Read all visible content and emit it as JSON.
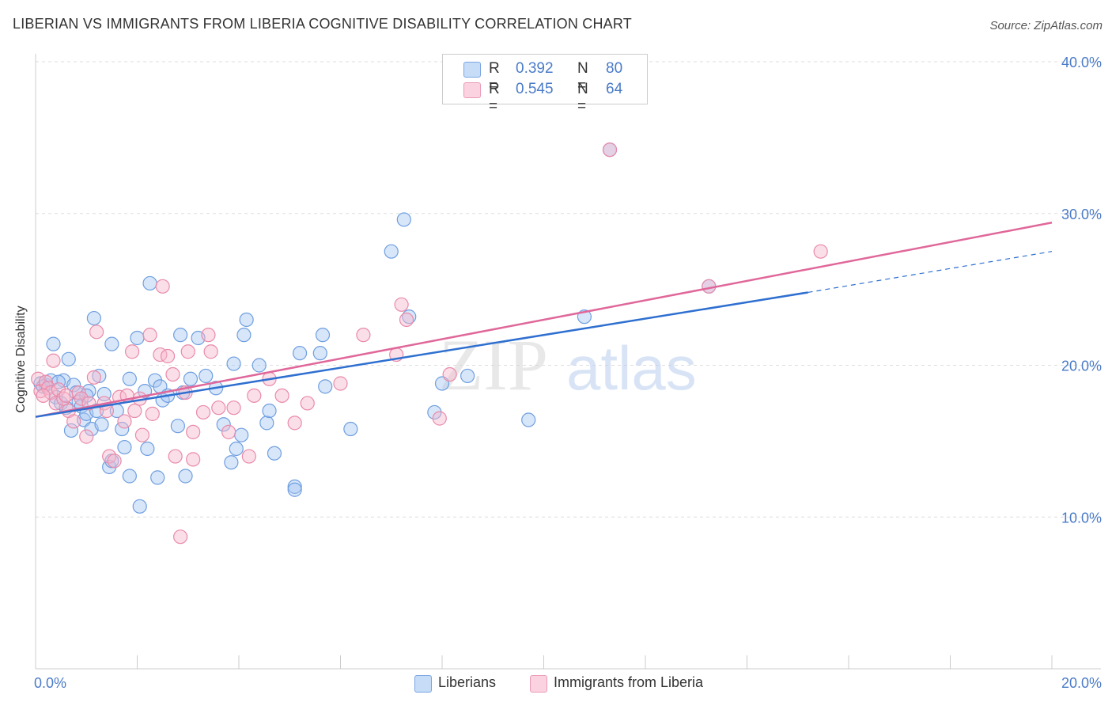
{
  "title": "LIBERIAN VS IMMIGRANTS FROM LIBERIA COGNITIVE DISABILITY CORRELATION CHART",
  "source": "Source: ZipAtlas.com",
  "watermark": {
    "zip": "ZIP",
    "atlas": "atlas"
  },
  "legend": {
    "rows": [
      {
        "r_label": "R =",
        "r_value": "0.392",
        "n_label": "N =",
        "n_value": "80",
        "color": "#a9c8f2"
      },
      {
        "r_label": "R =",
        "r_value": "0.545",
        "n_label": "N =",
        "n_value": "64",
        "color": "#f7b8cc"
      }
    ]
  },
  "bottom_legend": {
    "series1": "Liberians",
    "series2": "Immigrants from Liberia"
  },
  "colors": {
    "blue_fill": "#a9c8f2",
    "blue_stroke": "#6f9fe0",
    "blue_line": "#2e6fd0",
    "pink_fill": "#f7b8cc",
    "pink_stroke": "#e98aaa",
    "pink_line": "#e0679a",
    "axis_text": "#4a7bc8",
    "grid": "#dddddd"
  },
  "chart_data": {
    "type": "scatter",
    "title": "LIBERIAN VS IMMIGRANTS FROM LIBERIA COGNITIVE DISABILITY CORRELATION CHART",
    "xlabel": "",
    "ylabel": "Cognitive Disability",
    "xlim": [
      0,
      20
    ],
    "ylim": [
      0,
      40
    ],
    "x_tick_labels": [
      "0.0%",
      "20.0%"
    ],
    "y_ticks": [
      10,
      20,
      30,
      40
    ],
    "y_tick_labels": [
      "10.0%",
      "20.0%",
      "30.0%",
      "40.0%"
    ],
    "grid": true,
    "legend_position": "top-center",
    "series": [
      {
        "name": "Liberians",
        "r": 0.392,
        "n": 80,
        "trend": {
          "x0": 0,
          "y0": 16.6,
          "x1": 15.2,
          "y1": 24.8,
          "dashed_to_x": 20,
          "dashed_to_y": 27.5
        },
        "points": [
          [
            0.1,
            18.8
          ],
          [
            0.2,
            18.7
          ],
          [
            0.3,
            19.0
          ],
          [
            0.35,
            21.4
          ],
          [
            0.4,
            17.9
          ],
          [
            0.5,
            17.5
          ],
          [
            0.55,
            19.0
          ],
          [
            0.6,
            17.2
          ],
          [
            0.65,
            20.4
          ],
          [
            0.7,
            15.7
          ],
          [
            0.75,
            18.7
          ],
          [
            0.8,
            18.2
          ],
          [
            0.85,
            17.6
          ],
          [
            0.9,
            17.3
          ],
          [
            0.95,
            16.4
          ],
          [
            1.0,
            16.8
          ],
          [
            1.05,
            18.3
          ],
          [
            1.1,
            15.8
          ],
          [
            1.15,
            23.1
          ],
          [
            1.2,
            17.0
          ],
          [
            1.25,
            19.3
          ],
          [
            1.3,
            16.1
          ],
          [
            1.35,
            18.1
          ],
          [
            1.45,
            13.3
          ],
          [
            1.5,
            13.7
          ],
          [
            1.5,
            21.4
          ],
          [
            1.6,
            17.0
          ],
          [
            1.7,
            15.8
          ],
          [
            1.75,
            14.6
          ],
          [
            1.85,
            12.7
          ],
          [
            1.85,
            19.1
          ],
          [
            2.0,
            21.8
          ],
          [
            2.05,
            10.7
          ],
          [
            2.15,
            18.3
          ],
          [
            2.2,
            14.5
          ],
          [
            2.25,
            25.4
          ],
          [
            2.35,
            19.0
          ],
          [
            2.4,
            12.6
          ],
          [
            2.45,
            18.6
          ],
          [
            2.5,
            17.7
          ],
          [
            2.6,
            18.0
          ],
          [
            2.8,
            16.0
          ],
          [
            2.85,
            22.0
          ],
          [
            2.9,
            18.2
          ],
          [
            2.95,
            12.7
          ],
          [
            3.05,
            19.1
          ],
          [
            3.2,
            21.8
          ],
          [
            3.35,
            19.3
          ],
          [
            3.55,
            18.5
          ],
          [
            3.7,
            16.1
          ],
          [
            3.85,
            13.6
          ],
          [
            3.9,
            20.1
          ],
          [
            3.95,
            14.5
          ],
          [
            4.05,
            15.4
          ],
          [
            4.1,
            22.0
          ],
          [
            4.15,
            23.0
          ],
          [
            4.4,
            20.0
          ],
          [
            4.55,
            16.2
          ],
          [
            4.6,
            17.0
          ],
          [
            4.7,
            14.2
          ],
          [
            5.1,
            12.0
          ],
          [
            5.1,
            11.8
          ],
          [
            5.2,
            20.8
          ],
          [
            5.6,
            20.8
          ],
          [
            5.65,
            22.0
          ],
          [
            5.7,
            18.6
          ],
          [
            6.2,
            15.8
          ],
          [
            7.0,
            27.5
          ],
          [
            7.25,
            29.6
          ],
          [
            7.35,
            23.2
          ],
          [
            7.85,
            16.9
          ],
          [
            8.0,
            18.8
          ],
          [
            8.5,
            19.3
          ],
          [
            9.7,
            16.4
          ],
          [
            10.8,
            23.2
          ],
          [
            11.3,
            34.2
          ],
          [
            13.25,
            25.2
          ],
          [
            0.15,
            18.6
          ],
          [
            0.45,
            18.9
          ],
          [
            1.0,
            18.0
          ]
        ]
      },
      {
        "name": "Immigrants from Liberia",
        "r": 0.545,
        "n": 64,
        "trend": {
          "x0": 0,
          "y0": 16.6,
          "x1": 20,
          "y1": 29.4
        },
        "points": [
          [
            0.05,
            19.1
          ],
          [
            0.1,
            18.3
          ],
          [
            0.2,
            18.9
          ],
          [
            0.25,
            18.5
          ],
          [
            0.3,
            18.2
          ],
          [
            0.35,
            20.3
          ],
          [
            0.4,
            17.5
          ],
          [
            0.45,
            18.4
          ],
          [
            0.55,
            17.8
          ],
          [
            0.65,
            17.0
          ],
          [
            0.75,
            16.3
          ],
          [
            0.85,
            18.2
          ],
          [
            0.9,
            17.8
          ],
          [
            1.0,
            15.3
          ],
          [
            1.05,
            17.5
          ],
          [
            1.15,
            19.2
          ],
          [
            1.2,
            22.2
          ],
          [
            1.35,
            17.5
          ],
          [
            1.4,
            17.0
          ],
          [
            1.45,
            14.0
          ],
          [
            1.55,
            13.7
          ],
          [
            1.65,
            17.9
          ],
          [
            1.75,
            16.3
          ],
          [
            1.8,
            18.0
          ],
          [
            1.9,
            20.9
          ],
          [
            1.95,
            17.0
          ],
          [
            2.05,
            17.8
          ],
          [
            2.1,
            15.4
          ],
          [
            2.25,
            22.0
          ],
          [
            2.3,
            16.8
          ],
          [
            2.45,
            20.7
          ],
          [
            2.5,
            25.2
          ],
          [
            2.6,
            20.6
          ],
          [
            2.7,
            19.4
          ],
          [
            2.75,
            14.0
          ],
          [
            2.85,
            8.7
          ],
          [
            2.95,
            18.2
          ],
          [
            3.0,
            20.9
          ],
          [
            3.1,
            15.6
          ],
          [
            3.1,
            13.8
          ],
          [
            3.3,
            16.9
          ],
          [
            3.4,
            22.0
          ],
          [
            3.45,
            20.9
          ],
          [
            3.6,
            17.2
          ],
          [
            3.8,
            15.6
          ],
          [
            3.9,
            17.2
          ],
          [
            4.2,
            14.0
          ],
          [
            4.3,
            18.0
          ],
          [
            4.6,
            19.1
          ],
          [
            4.85,
            18.0
          ],
          [
            5.1,
            16.2
          ],
          [
            5.35,
            17.5
          ],
          [
            6.0,
            18.8
          ],
          [
            6.45,
            22.0
          ],
          [
            7.1,
            20.7
          ],
          [
            7.2,
            24.0
          ],
          [
            7.3,
            23.0
          ],
          [
            7.95,
            16.5
          ],
          [
            8.15,
            19.4
          ],
          [
            11.3,
            34.2
          ],
          [
            13.25,
            25.2
          ],
          [
            15.45,
            27.5
          ],
          [
            0.15,
            18.0
          ],
          [
            0.6,
            18.0
          ]
        ]
      }
    ]
  }
}
